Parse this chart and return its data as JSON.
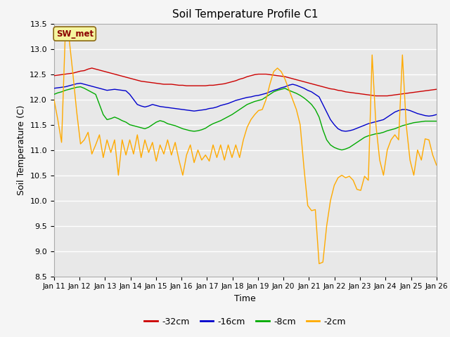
{
  "title": "Soil Temperature Profile C1",
  "xlabel": "Time",
  "ylabel": "Soil Temperature (C)",
  "ylim": [
    8.5,
    13.5
  ],
  "yticks": [
    8.5,
    9.0,
    9.5,
    10.0,
    10.5,
    11.0,
    11.5,
    12.0,
    12.5,
    13.0,
    13.5
  ],
  "xtick_labels": [
    "Jan 11",
    "Jan 12",
    "Jan 13",
    "Jan 14",
    "Jan 15",
    "Jan 16",
    "Jan 17",
    "Jan 18",
    "Jan 19",
    "Jan 20",
    "Jan 21",
    "Jan 22",
    "Jan 23",
    "Jan 24",
    "Jan 25",
    "Jan 26"
  ],
  "colors": {
    "-32cm": "#cc0000",
    "-16cm": "#0000cc",
    "-8cm": "#00aa00",
    "-2cm": "#ffaa00"
  },
  "annotation_label": "SW_met",
  "background_color": "#e8e8e8",
  "plot_bg_color": "#e8e8e8",
  "fig_bg_color": "#f5f5f5",
  "series": {
    "-32cm": [
      12.47,
      12.48,
      12.49,
      12.5,
      12.51,
      12.52,
      12.54,
      12.56,
      12.57,
      12.6,
      12.62,
      12.6,
      12.58,
      12.56,
      12.54,
      12.52,
      12.5,
      12.48,
      12.46,
      12.44,
      12.42,
      12.4,
      12.38,
      12.36,
      12.35,
      12.34,
      12.33,
      12.32,
      12.31,
      12.3,
      12.3,
      12.3,
      12.29,
      12.28,
      12.28,
      12.27,
      12.27,
      12.27,
      12.27,
      12.27,
      12.27,
      12.28,
      12.28,
      12.29,
      12.3,
      12.31,
      12.33,
      12.35,
      12.37,
      12.4,
      12.42,
      12.45,
      12.47,
      12.49,
      12.5,
      12.5,
      12.5,
      12.49,
      12.48,
      12.47,
      12.46,
      12.45,
      12.43,
      12.41,
      12.39,
      12.37,
      12.35,
      12.33,
      12.31,
      12.29,
      12.27,
      12.25,
      12.23,
      12.21,
      12.2,
      12.18,
      12.17,
      12.15,
      12.14,
      12.13,
      12.12,
      12.11,
      12.1,
      12.09,
      12.08,
      12.07,
      12.07,
      12.07,
      12.07,
      12.08,
      12.09,
      12.1,
      12.11,
      12.12,
      12.13,
      12.14,
      12.15,
      12.16,
      12.17,
      12.18,
      12.19,
      12.2
    ],
    "-16cm": [
      12.22,
      12.23,
      12.24,
      12.25,
      12.27,
      12.29,
      12.31,
      12.32,
      12.3,
      12.28,
      12.26,
      12.24,
      12.22,
      12.2,
      12.18,
      12.19,
      12.2,
      12.19,
      12.18,
      12.17,
      12.1,
      12.0,
      11.9,
      11.87,
      11.85,
      11.87,
      11.9,
      11.88,
      11.86,
      11.85,
      11.84,
      11.83,
      11.82,
      11.81,
      11.8,
      11.79,
      11.78,
      11.77,
      11.78,
      11.79,
      11.8,
      11.82,
      11.83,
      11.85,
      11.88,
      11.9,
      11.92,
      11.95,
      11.98,
      12.0,
      12.02,
      12.04,
      12.05,
      12.07,
      12.08,
      12.1,
      12.12,
      12.15,
      12.18,
      12.2,
      12.23,
      12.25,
      12.28,
      12.3,
      12.28,
      12.25,
      12.22,
      12.18,
      12.15,
      12.1,
      12.05,
      11.9,
      11.75,
      11.6,
      11.5,
      11.42,
      11.38,
      11.37,
      11.38,
      11.4,
      11.43,
      11.46,
      11.49,
      11.52,
      11.54,
      11.56,
      11.58,
      11.6,
      11.65,
      11.7,
      11.75,
      11.78,
      11.8,
      11.8,
      11.78,
      11.75,
      11.72,
      11.7,
      11.68,
      11.67,
      11.68,
      11.7
    ],
    "-8cm": [
      12.1,
      12.13,
      12.15,
      12.18,
      12.2,
      12.22,
      12.24,
      12.25,
      12.22,
      12.18,
      12.14,
      12.1,
      11.9,
      11.7,
      11.6,
      11.62,
      11.65,
      11.62,
      11.58,
      11.55,
      11.5,
      11.48,
      11.46,
      11.44,
      11.42,
      11.45,
      11.5,
      11.55,
      11.58,
      11.56,
      11.52,
      11.5,
      11.48,
      11.45,
      11.42,
      11.4,
      11.38,
      11.37,
      11.38,
      11.4,
      11.43,
      11.48,
      11.52,
      11.55,
      11.58,
      11.62,
      11.66,
      11.7,
      11.75,
      11.8,
      11.85,
      11.9,
      11.93,
      11.96,
      11.98,
      12.0,
      12.05,
      12.1,
      12.15,
      12.18,
      12.2,
      12.22,
      12.18,
      12.15,
      12.12,
      12.08,
      12.03,
      11.97,
      11.9,
      11.8,
      11.65,
      11.4,
      11.2,
      11.1,
      11.05,
      11.02,
      11.0,
      11.02,
      11.05,
      11.1,
      11.15,
      11.2,
      11.25,
      11.28,
      11.3,
      11.32,
      11.33,
      11.35,
      11.38,
      11.4,
      11.42,
      11.45,
      11.48,
      11.5,
      11.52,
      11.54,
      11.55,
      11.56,
      11.57,
      11.57,
      11.57,
      11.57
    ],
    "-2cm": [
      12.0,
      11.6,
      11.15,
      13.35,
      13.2,
      12.5,
      11.75,
      11.12,
      11.2,
      11.35,
      10.92,
      11.1,
      11.3,
      10.85,
      11.2,
      10.95,
      11.2,
      10.5,
      11.2,
      10.9,
      11.2,
      10.92,
      11.3,
      10.85,
      11.2,
      10.95,
      11.15,
      10.78,
      11.1,
      10.92,
      11.2,
      10.9,
      11.15,
      10.8,
      10.5,
      10.9,
      11.1,
      10.75,
      11.0,
      10.8,
      10.9,
      10.78,
      11.1,
      10.85,
      11.1,
      10.8,
      11.1,
      10.85,
      11.1,
      10.85,
      11.2,
      11.45,
      11.6,
      11.7,
      11.78,
      11.8,
      12.0,
      12.3,
      12.55,
      12.62,
      12.55,
      12.4,
      12.2,
      12.0,
      11.8,
      11.5,
      10.65,
      9.9,
      9.8,
      9.82,
      8.75,
      8.78,
      9.5,
      10.0,
      10.3,
      10.45,
      10.5,
      10.45,
      10.48,
      10.4,
      10.22,
      10.2,
      10.48,
      10.4,
      12.88,
      11.5,
      10.8,
      10.5,
      11.0,
      11.2,
      11.3,
      11.2,
      12.88,
      11.5,
      10.8,
      10.5,
      11.0,
      10.8,
      11.22,
      11.2,
      10.9,
      10.7
    ]
  }
}
